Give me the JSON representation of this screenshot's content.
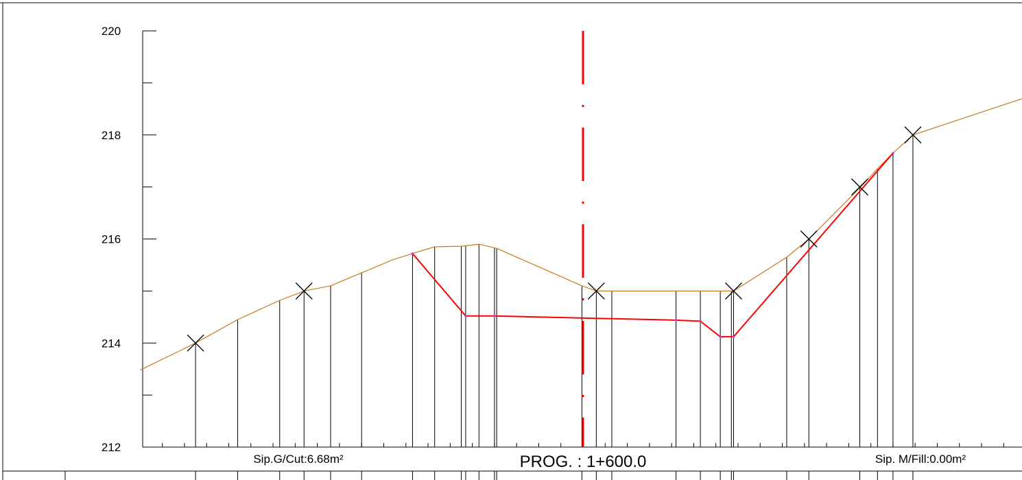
{
  "chart_data": {
    "type": "cross-section",
    "ylim": [
      212,
      220
    ],
    "xlim": [
      -20,
      20
    ],
    "y_ticks": [
      212,
      214,
      216,
      218,
      220
    ],
    "y_tick_labels": [
      "212",
      "214",
      "216",
      "218",
      "220"
    ],
    "grid": false,
    "centerline_offset": 0,
    "ground_profile": [
      [
        -20,
        213.48
      ],
      [
        -17.5,
        214.0
      ],
      [
        -15.6,
        214.45
      ],
      [
        -13.7,
        214.82
      ],
      [
        -12.6,
        215.0
      ],
      [
        -11.4,
        215.1
      ],
      [
        -10.0,
        215.35
      ],
      [
        -8.6,
        215.6
      ],
      [
        -7.7,
        215.72
      ],
      [
        -6.7,
        215.85
      ],
      [
        -5.5,
        215.86
      ],
      [
        -4.7,
        215.9
      ],
      [
        -3.9,
        215.82
      ],
      [
        -0.05,
        215.1
      ],
      [
        0.6,
        215.0
      ],
      [
        1.3,
        215.0
      ],
      [
        4.2,
        215.0
      ],
      [
        5.3,
        215.0
      ],
      [
        6.2,
        215.0
      ],
      [
        6.8,
        215.0
      ],
      [
        9.2,
        215.65
      ],
      [
        10.2,
        216.0
      ],
      [
        12.5,
        216.98
      ],
      [
        13.3,
        217.35
      ],
      [
        14.0,
        217.65
      ],
      [
        14.9,
        218.0
      ],
      [
        20,
        218.72
      ]
    ],
    "design_profile": [
      [
        -7.7,
        215.72
      ],
      [
        -5.3,
        214.52
      ],
      [
        -4.0,
        214.52
      ],
      [
        4.2,
        214.44
      ],
      [
        5.3,
        214.42
      ],
      [
        6.2,
        214.12
      ],
      [
        6.8,
        214.12
      ],
      [
        14.0,
        217.65
      ]
    ],
    "elevation_markers": [
      {
        "offset": -17.5,
        "elevation": 214.0
      },
      {
        "offset": -12.6,
        "elevation": 215.0
      },
      {
        "offset": 0.6,
        "elevation": 215.0
      },
      {
        "offset": 6.8,
        "elevation": 215.0
      },
      {
        "offset": 10.2,
        "elevation": 216.0
      },
      {
        "offset": 12.5,
        "elevation": 217.0
      },
      {
        "offset": 14.9,
        "elevation": 218.0
      }
    ],
    "station_verticals": [
      -17.5,
      -15.6,
      -13.7,
      -12.6,
      -11.4,
      -10.0,
      -7.7,
      -6.7,
      -5.5,
      -5.3,
      -4.7,
      -4.0,
      -3.9,
      -0.05,
      0.6,
      1.3,
      4.2,
      5.3,
      6.2,
      6.7,
      6.8,
      9.2,
      10.2,
      12.5,
      13.3,
      14.0,
      14.9
    ],
    "annotations": {
      "cut_area": "Sip.G/Cut:6.68m²",
      "station": "PROG. : 1+600.0",
      "fill_area": "Sip. M/Fill:0.00m²"
    },
    "colors": {
      "ground_line": "#c87820",
      "design_line": "#ff0000",
      "centerline": "#ff0000",
      "frame": "#000000",
      "vertex_marker": "#cc33cc"
    }
  }
}
